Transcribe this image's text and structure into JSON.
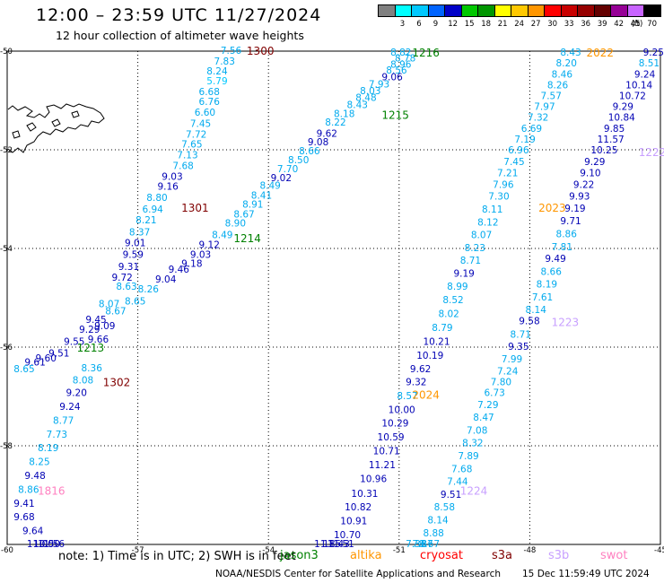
{
  "title": "12:00 – 23:59 UTC 11/27/2024",
  "subtitle": "12 hour collection of altimeter wave heights",
  "legend": {
    "unit": "(ft)",
    "bins": [
      {
        "label": "",
        "color": "#808080"
      },
      {
        "label": "3",
        "color": "#00ffff"
      },
      {
        "label": "6",
        "color": "#00c8ff"
      },
      {
        "label": "9",
        "color": "#0064ff"
      },
      {
        "label": "12",
        "color": "#0000c8"
      },
      {
        "label": "15",
        "color": "#00c800"
      },
      {
        "label": "18",
        "color": "#009600"
      },
      {
        "label": "21",
        "color": "#ffff00"
      },
      {
        "label": "24",
        "color": "#ffc800"
      },
      {
        "label": "27",
        "color": "#ff9600"
      },
      {
        "label": "30",
        "color": "#ff0000"
      },
      {
        "label": "33",
        "color": "#c80000"
      },
      {
        "label": "36",
        "color": "#960000"
      },
      {
        "label": "39",
        "color": "#640000"
      },
      {
        "label": "42",
        "color": "#960096"
      },
      {
        "label": "45",
        "color": "#c864ff"
      },
      {
        "label": "70",
        "color": "#000000"
      }
    ]
  },
  "map": {
    "lon_range": [
      -60,
      -45
    ],
    "lat_range": [
      -60,
      -50
    ],
    "lon_ticks": [
      "-60",
      "-57",
      "-54",
      "-51",
      "-48",
      "-45"
    ],
    "lat_ticks": [
      "-50",
      "-52",
      "-54",
      "-56",
      "-58",
      "-60"
    ],
    "grid": "dotted"
  },
  "pass_labels": [
    {
      "text": "1300",
      "lon": -54.5,
      "lat": -49.98,
      "color": "#800000"
    },
    {
      "text": "1301",
      "lon": -56.0,
      "lat": -53.16,
      "color": "#800000"
    },
    {
      "text": "1302",
      "lon": -57.8,
      "lat": -56.7,
      "color": "#800000"
    },
    {
      "text": "1216",
      "lon": -50.7,
      "lat": -50.02,
      "color": "#008000"
    },
    {
      "text": "1215",
      "lon": -51.4,
      "lat": -51.28,
      "color": "#008000"
    },
    {
      "text": "1214",
      "lon": -54.8,
      "lat": -53.78,
      "color": "#008000"
    },
    {
      "text": "1213",
      "lon": -58.4,
      "lat": -56.0,
      "color": "#008000"
    },
    {
      "text": "2022",
      "lon": -46.7,
      "lat": -50.02,
      "color": "#ff9600"
    },
    {
      "text": "2023",
      "lon": -47.8,
      "lat": -53.16,
      "color": "#ff9600"
    },
    {
      "text": "2024",
      "lon": -50.7,
      "lat": -56.95,
      "color": "#ff9600"
    },
    {
      "text": "1222",
      "lon": -45.5,
      "lat": -52.04,
      "color": "#c8a0ff"
    },
    {
      "text": "1223",
      "lon": -47.5,
      "lat": -55.48,
      "color": "#c8a0ff"
    },
    {
      "text": "1224",
      "lon": -49.6,
      "lat": -58.9,
      "color": "#c8a0ff"
    },
    {
      "text": "1816",
      "lon": -59.3,
      "lat": -58.9,
      "color": "#ff80c0"
    }
  ],
  "tracks": [
    {
      "id": "t1300",
      "points": [
        {
          "v": "7.56",
          "lon": -55.1,
          "lat": -49.98
        },
        {
          "v": "7.83",
          "lon": -55.25,
          "lat": -50.2
        },
        {
          "v": "8.24",
          "lon": -55.42,
          "lat": -50.4
        },
        {
          "v": "5.79",
          "lon": -55.42,
          "lat": -50.6
        },
        {
          "v": "6.68",
          "lon": -55.6,
          "lat": -50.82
        },
        {
          "v": "6.76",
          "lon": -55.6,
          "lat": -51.02
        },
        {
          "v": "6.60",
          "lon": -55.7,
          "lat": -51.24
        },
        {
          "v": "7.45",
          "lon": -55.8,
          "lat": -51.46
        },
        {
          "v": "7.72",
          "lon": -55.9,
          "lat": -51.68
        },
        {
          "v": "7.65",
          "lon": -56.0,
          "lat": -51.88
        },
        {
          "v": "7.13",
          "lon": -56.1,
          "lat": -52.1
        },
        {
          "v": "7.68",
          "lon": -56.2,
          "lat": -52.32
        },
        {
          "v": "9.03",
          "lon": -56.45,
          "lat": -52.54
        },
        {
          "v": "9.16",
          "lon": -56.55,
          "lat": -52.74
        },
        {
          "v": "8.80",
          "lon": -56.8,
          "lat": -52.96
        },
        {
          "v": "6.94",
          "lon": -56.9,
          "lat": -53.2
        },
        {
          "v": "8.21",
          "lon": -57.05,
          "lat": -53.42
        },
        {
          "v": "8.37",
          "lon": -57.2,
          "lat": -53.66
        },
        {
          "v": "9.01",
          "lon": -57.3,
          "lat": -53.88
        },
        {
          "v": "9.59",
          "lon": -57.35,
          "lat": -54.12
        },
        {
          "v": "9.31",
          "lon": -57.45,
          "lat": -54.36
        },
        {
          "v": "9.72",
          "lon": -57.6,
          "lat": -54.58
        },
        {
          "v": "8.63",
          "lon": -57.5,
          "lat": -54.76
        },
        {
          "v": "8.07",
          "lon": -57.9,
          "lat": -55.12
        },
        {
          "v": "9.45",
          "lon": -58.2,
          "lat": -55.44
        },
        {
          "v": "9.29",
          "lon": -58.35,
          "lat": -55.64
        },
        {
          "v": "9.55",
          "lon": -58.7,
          "lat": -55.88
        },
        {
          "v": "9.51",
          "lon": -59.05,
          "lat": -56.12
        },
        {
          "v": "9.60",
          "lon": -59.35,
          "lat": -56.22
        },
        {
          "v": "9.61",
          "lon": -59.6,
          "lat": -56.3
        }
      ]
    },
    {
      "id": "t1302",
      "points": [
        {
          "v": "8.65",
          "lon": -59.85,
          "lat": -56.44
        },
        {
          "v": "8.36",
          "lon": -58.3,
          "lat": -56.42
        },
        {
          "v": "8.08",
          "lon": -58.5,
          "lat": -56.66
        },
        {
          "v": "9.20",
          "lon": -58.65,
          "lat": -56.92
        },
        {
          "v": "9.24",
          "lon": -58.8,
          "lat": -57.2
        },
        {
          "v": "8.77",
          "lon": -58.95,
          "lat": -57.48
        },
        {
          "v": "7.73",
          "lon": -59.1,
          "lat": -57.76
        },
        {
          "v": "8.19",
          "lon": -59.3,
          "lat": -58.04
        },
        {
          "v": "8.25",
          "lon": -59.5,
          "lat": -58.32
        },
        {
          "v": "9.48",
          "lon": -59.6,
          "lat": -58.6
        },
        {
          "v": "8.86",
          "lon": -59.75,
          "lat": -58.88
        },
        {
          "v": "9.41",
          "lon": -59.85,
          "lat": -59.16
        },
        {
          "v": "9.68",
          "lon": -59.85,
          "lat": -59.44
        },
        {
          "v": "9.64",
          "lon": -59.65,
          "lat": -59.72
        },
        {
          "v": "11.00",
          "lon": -59.55,
          "lat": -60.0
        },
        {
          "v": "10.50",
          "lon": -59.4,
          "lat": -60.28
        },
        {
          "v": "11.56",
          "lon": -59.3,
          "lat": -60.56
        }
      ]
    },
    {
      "id": "t1214",
      "points": [
        {
          "v": "8.82",
          "lon": -51.2,
          "lat": -50.02
        },
        {
          "v": "8.78",
          "lon": -51.1,
          "lat": -50.14
        },
        {
          "v": "8.96",
          "lon": -51.2,
          "lat": -50.26
        },
        {
          "v": "8.56",
          "lon": -51.3,
          "lat": -50.38
        },
        {
          "v": "9.06",
          "lon": -51.4,
          "lat": -50.52
        },
        {
          "v": "7.93",
          "lon": -51.7,
          "lat": -50.66
        },
        {
          "v": "8.03",
          "lon": -51.9,
          "lat": -50.8
        },
        {
          "v": "8.48",
          "lon": -52.0,
          "lat": -50.94
        },
        {
          "v": "8.43",
          "lon": -52.2,
          "lat": -51.08
        },
        {
          "v": "8.18",
          "lon": -52.5,
          "lat": -51.26
        },
        {
          "v": "8.22",
          "lon": -52.7,
          "lat": -51.44
        },
        {
          "v": "9.62",
          "lon": -52.9,
          "lat": -51.66
        },
        {
          "v": "9.08",
          "lon": -53.1,
          "lat": -51.84
        },
        {
          "v": "8.66",
          "lon": -53.3,
          "lat": -52.02
        },
        {
          "v": "8.50",
          "lon": -53.55,
          "lat": -52.2
        },
        {
          "v": "7.70",
          "lon": -53.8,
          "lat": -52.38
        },
        {
          "v": "9.02",
          "lon": -53.95,
          "lat": -52.56
        },
        {
          "v": "8.49",
          "lon": -54.2,
          "lat": -52.72
        },
        {
          "v": "8.41",
          "lon": -54.4,
          "lat": -52.92
        },
        {
          "v": "8.91",
          "lon": -54.6,
          "lat": -53.1
        },
        {
          "v": "8.67",
          "lon": -54.8,
          "lat": -53.3
        },
        {
          "v": "8.90",
          "lon": -55.0,
          "lat": -53.48
        },
        {
          "v": "8.49",
          "lon": -55.3,
          "lat": -53.72
        },
        {
          "v": "9.12",
          "lon": -55.6,
          "lat": -53.92
        },
        {
          "v": "9.03",
          "lon": -55.8,
          "lat": -54.12
        },
        {
          "v": "9.18",
          "lon": -56.0,
          "lat": -54.3
        },
        {
          "v": "9.46",
          "lon": -56.3,
          "lat": -54.42
        },
        {
          "v": "9.04",
          "lon": -56.6,
          "lat": -54.62
        },
        {
          "v": "8.26",
          "lon": -57.0,
          "lat": -54.82
        },
        {
          "v": "8.65",
          "lon": -57.3,
          "lat": -55.06
        },
        {
          "v": "8.67",
          "lon": -57.75,
          "lat": -55.26
        },
        {
          "v": "9.09",
          "lon": -58.0,
          "lat": -55.56
        },
        {
          "v": "9.66",
          "lon": -58.15,
          "lat": -55.84
        }
      ]
    },
    {
      "id": "t2022",
      "points": [
        {
          "v": "8.43",
          "lon": -47.3,
          "lat": -50.02
        },
        {
          "v": "8.20",
          "lon": -47.4,
          "lat": -50.24
        },
        {
          "v": "8.46",
          "lon": -47.5,
          "lat": -50.46
        },
        {
          "v": "8.26",
          "lon": -47.6,
          "lat": -50.68
        },
        {
          "v": "7.57",
          "lon": -47.75,
          "lat": -50.9
        },
        {
          "v": "7.97",
          "lon": -47.9,
          "lat": -51.12
        },
        {
          "v": "7.32",
          "lon": -48.05,
          "lat": -51.34
        },
        {
          "v": "6.69",
          "lon": -48.2,
          "lat": -51.56
        },
        {
          "v": "7.19",
          "lon": -48.35,
          "lat": -51.78
        },
        {
          "v": "6.96",
          "lon": -48.5,
          "lat": -52.0
        },
        {
          "v": "7.45",
          "lon": -48.6,
          "lat": -52.24
        },
        {
          "v": "7.21",
          "lon": -48.75,
          "lat": -52.46
        },
        {
          "v": "7.96",
          "lon": -48.85,
          "lat": -52.7
        },
        {
          "v": "7.30",
          "lon": -48.95,
          "lat": -52.94
        },
        {
          "v": "8.11",
          "lon": -49.1,
          "lat": -53.2
        },
        {
          "v": "8.12",
          "lon": -49.2,
          "lat": -53.46
        },
        {
          "v": "8.07",
          "lon": -49.35,
          "lat": -53.72
        },
        {
          "v": "8.23",
          "lon": -49.5,
          "lat": -53.98
        },
        {
          "v": "8.71",
          "lon": -49.6,
          "lat": -54.24
        },
        {
          "v": "9.19",
          "lon": -49.75,
          "lat": -54.5
        },
        {
          "v": "8.99",
          "lon": -49.9,
          "lat": -54.76
        },
        {
          "v": "8.52",
          "lon": -50.0,
          "lat": -55.04
        },
        {
          "v": "8.02",
          "lon": -50.1,
          "lat": -55.32
        },
        {
          "v": "8.79",
          "lon": -50.25,
          "lat": -55.6
        },
        {
          "v": "10.21",
          "lon": -50.45,
          "lat": -55.88
        },
        {
          "v": "10.19",
          "lon": -50.6,
          "lat": -56.16
        },
        {
          "v": "9.62",
          "lon": -50.75,
          "lat": -56.44
        },
        {
          "v": "9.32",
          "lon": -50.85,
          "lat": -56.7
        },
        {
          "v": "8.57",
          "lon": -51.05,
          "lat": -56.98
        },
        {
          "v": "10.00",
          "lon": -51.25,
          "lat": -57.26
        },
        {
          "v": "10.29",
          "lon": -51.4,
          "lat": -57.54
        },
        {
          "v": "10.59",
          "lon": -51.5,
          "lat": -57.82
        },
        {
          "v": "10.71",
          "lon": -51.6,
          "lat": -58.1
        },
        {
          "v": "11.21",
          "lon": -51.7,
          "lat": -58.38
        },
        {
          "v": "10.96",
          "lon": -51.9,
          "lat": -58.66
        },
        {
          "v": "10.31",
          "lon": -52.1,
          "lat": -58.96
        },
        {
          "v": "10.82",
          "lon": -52.25,
          "lat": -59.24
        },
        {
          "v": "10.91",
          "lon": -52.35,
          "lat": -59.52
        },
        {
          "v": "10.70",
          "lon": -52.5,
          "lat": -59.8
        },
        {
          "v": "11.51",
          "lon": -52.65,
          "lat": -60.08
        },
        {
          "v": "11.43",
          "lon": -52.75,
          "lat": -60.36
        },
        {
          "v": "11.85",
          "lon": -52.95,
          "lat": -60.64
        }
      ]
    },
    {
      "id": "t1222",
      "points": [
        {
          "v": "9.25",
          "lon": -45.4,
          "lat": -50.02
        },
        {
          "v": "8.51",
          "lon": -45.5,
          "lat": -50.24
        },
        {
          "v": "9.24",
          "lon": -45.6,
          "lat": -50.46
        },
        {
          "v": "10.14",
          "lon": -45.8,
          "lat": -50.68
        },
        {
          "v": "10.72",
          "lon": -45.95,
          "lat": -50.9
        },
        {
          "v": "9.29",
          "lon": -46.1,
          "lat": -51.12
        },
        {
          "v": "10.84",
          "lon": -46.2,
          "lat": -51.34
        },
        {
          "v": "9.85",
          "lon": -46.3,
          "lat": -51.56
        },
        {
          "v": "11.57",
          "lon": -46.45,
          "lat": -51.78
        },
        {
          "v": "10.25",
          "lon": -46.6,
          "lat": -52.0
        },
        {
          "v": "9.29",
          "lon": -46.75,
          "lat": -52.24
        },
        {
          "v": "9.10",
          "lon": -46.85,
          "lat": -52.46
        },
        {
          "v": "9.22",
          "lon": -47.0,
          "lat": -52.7
        },
        {
          "v": "9.93",
          "lon": -47.1,
          "lat": -52.94
        },
        {
          "v": "9.19",
          "lon": -47.2,
          "lat": -53.18
        },
        {
          "v": "9.71",
          "lon": -47.3,
          "lat": -53.44
        },
        {
          "v": "8.86",
          "lon": -47.4,
          "lat": -53.7
        },
        {
          "v": "7.81",
          "lon": -47.5,
          "lat": -53.96
        },
        {
          "v": "9.49",
          "lon": -47.65,
          "lat": -54.2
        },
        {
          "v": "8.66",
          "lon": -47.75,
          "lat": -54.46
        },
        {
          "v": "8.19",
          "lon": -47.85,
          "lat": -54.72
        },
        {
          "v": "7.61",
          "lon": -47.95,
          "lat": -54.98
        },
        {
          "v": "8.14",
          "lon": -48.1,
          "lat": -55.24
        },
        {
          "v": "9.58",
          "lon": -48.25,
          "lat": -55.46
        },
        {
          "v": "8.71",
          "lon": -48.45,
          "lat": -55.74
        },
        {
          "v": "9.35",
          "lon": -48.5,
          "lat": -55.98
        },
        {
          "v": "7.99",
          "lon": -48.65,
          "lat": -56.24
        },
        {
          "v": "7.24",
          "lon": -48.75,
          "lat": -56.48
        },
        {
          "v": "7.80",
          "lon": -48.9,
          "lat": -56.7
        },
        {
          "v": "6.73",
          "lon": -49.05,
          "lat": -56.92
        },
        {
          "v": "7.29",
          "lon": -49.2,
          "lat": -57.16
        },
        {
          "v": "8.47",
          "lon": -49.3,
          "lat": -57.42
        },
        {
          "v": "7.08",
          "lon": -49.45,
          "lat": -57.68
        },
        {
          "v": "8.32",
          "lon": -49.55,
          "lat": -57.94
        },
        {
          "v": "7.89",
          "lon": -49.65,
          "lat": -58.2
        },
        {
          "v": "7.68",
          "lon": -49.8,
          "lat": -58.46
        },
        {
          "v": "7.44",
          "lon": -49.9,
          "lat": -58.72
        },
        {
          "v": "9.51",
          "lon": -50.05,
          "lat": -58.98
        },
        {
          "v": "8.58",
          "lon": -50.2,
          "lat": -59.24
        },
        {
          "v": "8.14",
          "lon": -50.35,
          "lat": -59.5
        },
        {
          "v": "8.88",
          "lon": -50.45,
          "lat": -59.76
        },
        {
          "v": "8.67",
          "lon": -50.55,
          "lat": -60.02
        },
        {
          "v": "7.87",
          "lon": -50.7,
          "lat": -60.28
        },
        {
          "v": "7.38",
          "lon": -50.85,
          "lat": -60.56
        }
      ]
    }
  ],
  "note": "note:  1) Time is in UTC; 2) SWH is in feet",
  "satellites": [
    {
      "name": "jason3",
      "color": "#008000"
    },
    {
      "name": "altika",
      "color": "#ff9600"
    },
    {
      "name": "cryosat",
      "color": "#ff0000"
    },
    {
      "name": "s3a",
      "color": "#800000"
    },
    {
      "name": "s3b",
      "color": "#c8a0ff"
    },
    {
      "name": "swot",
      "color": "#ff80c0"
    }
  ],
  "credit": "NOAA/NESDIS Center for Satellite Applications and Research",
  "credit_time": "15 Dec 11:59:49 UTC 2024"
}
